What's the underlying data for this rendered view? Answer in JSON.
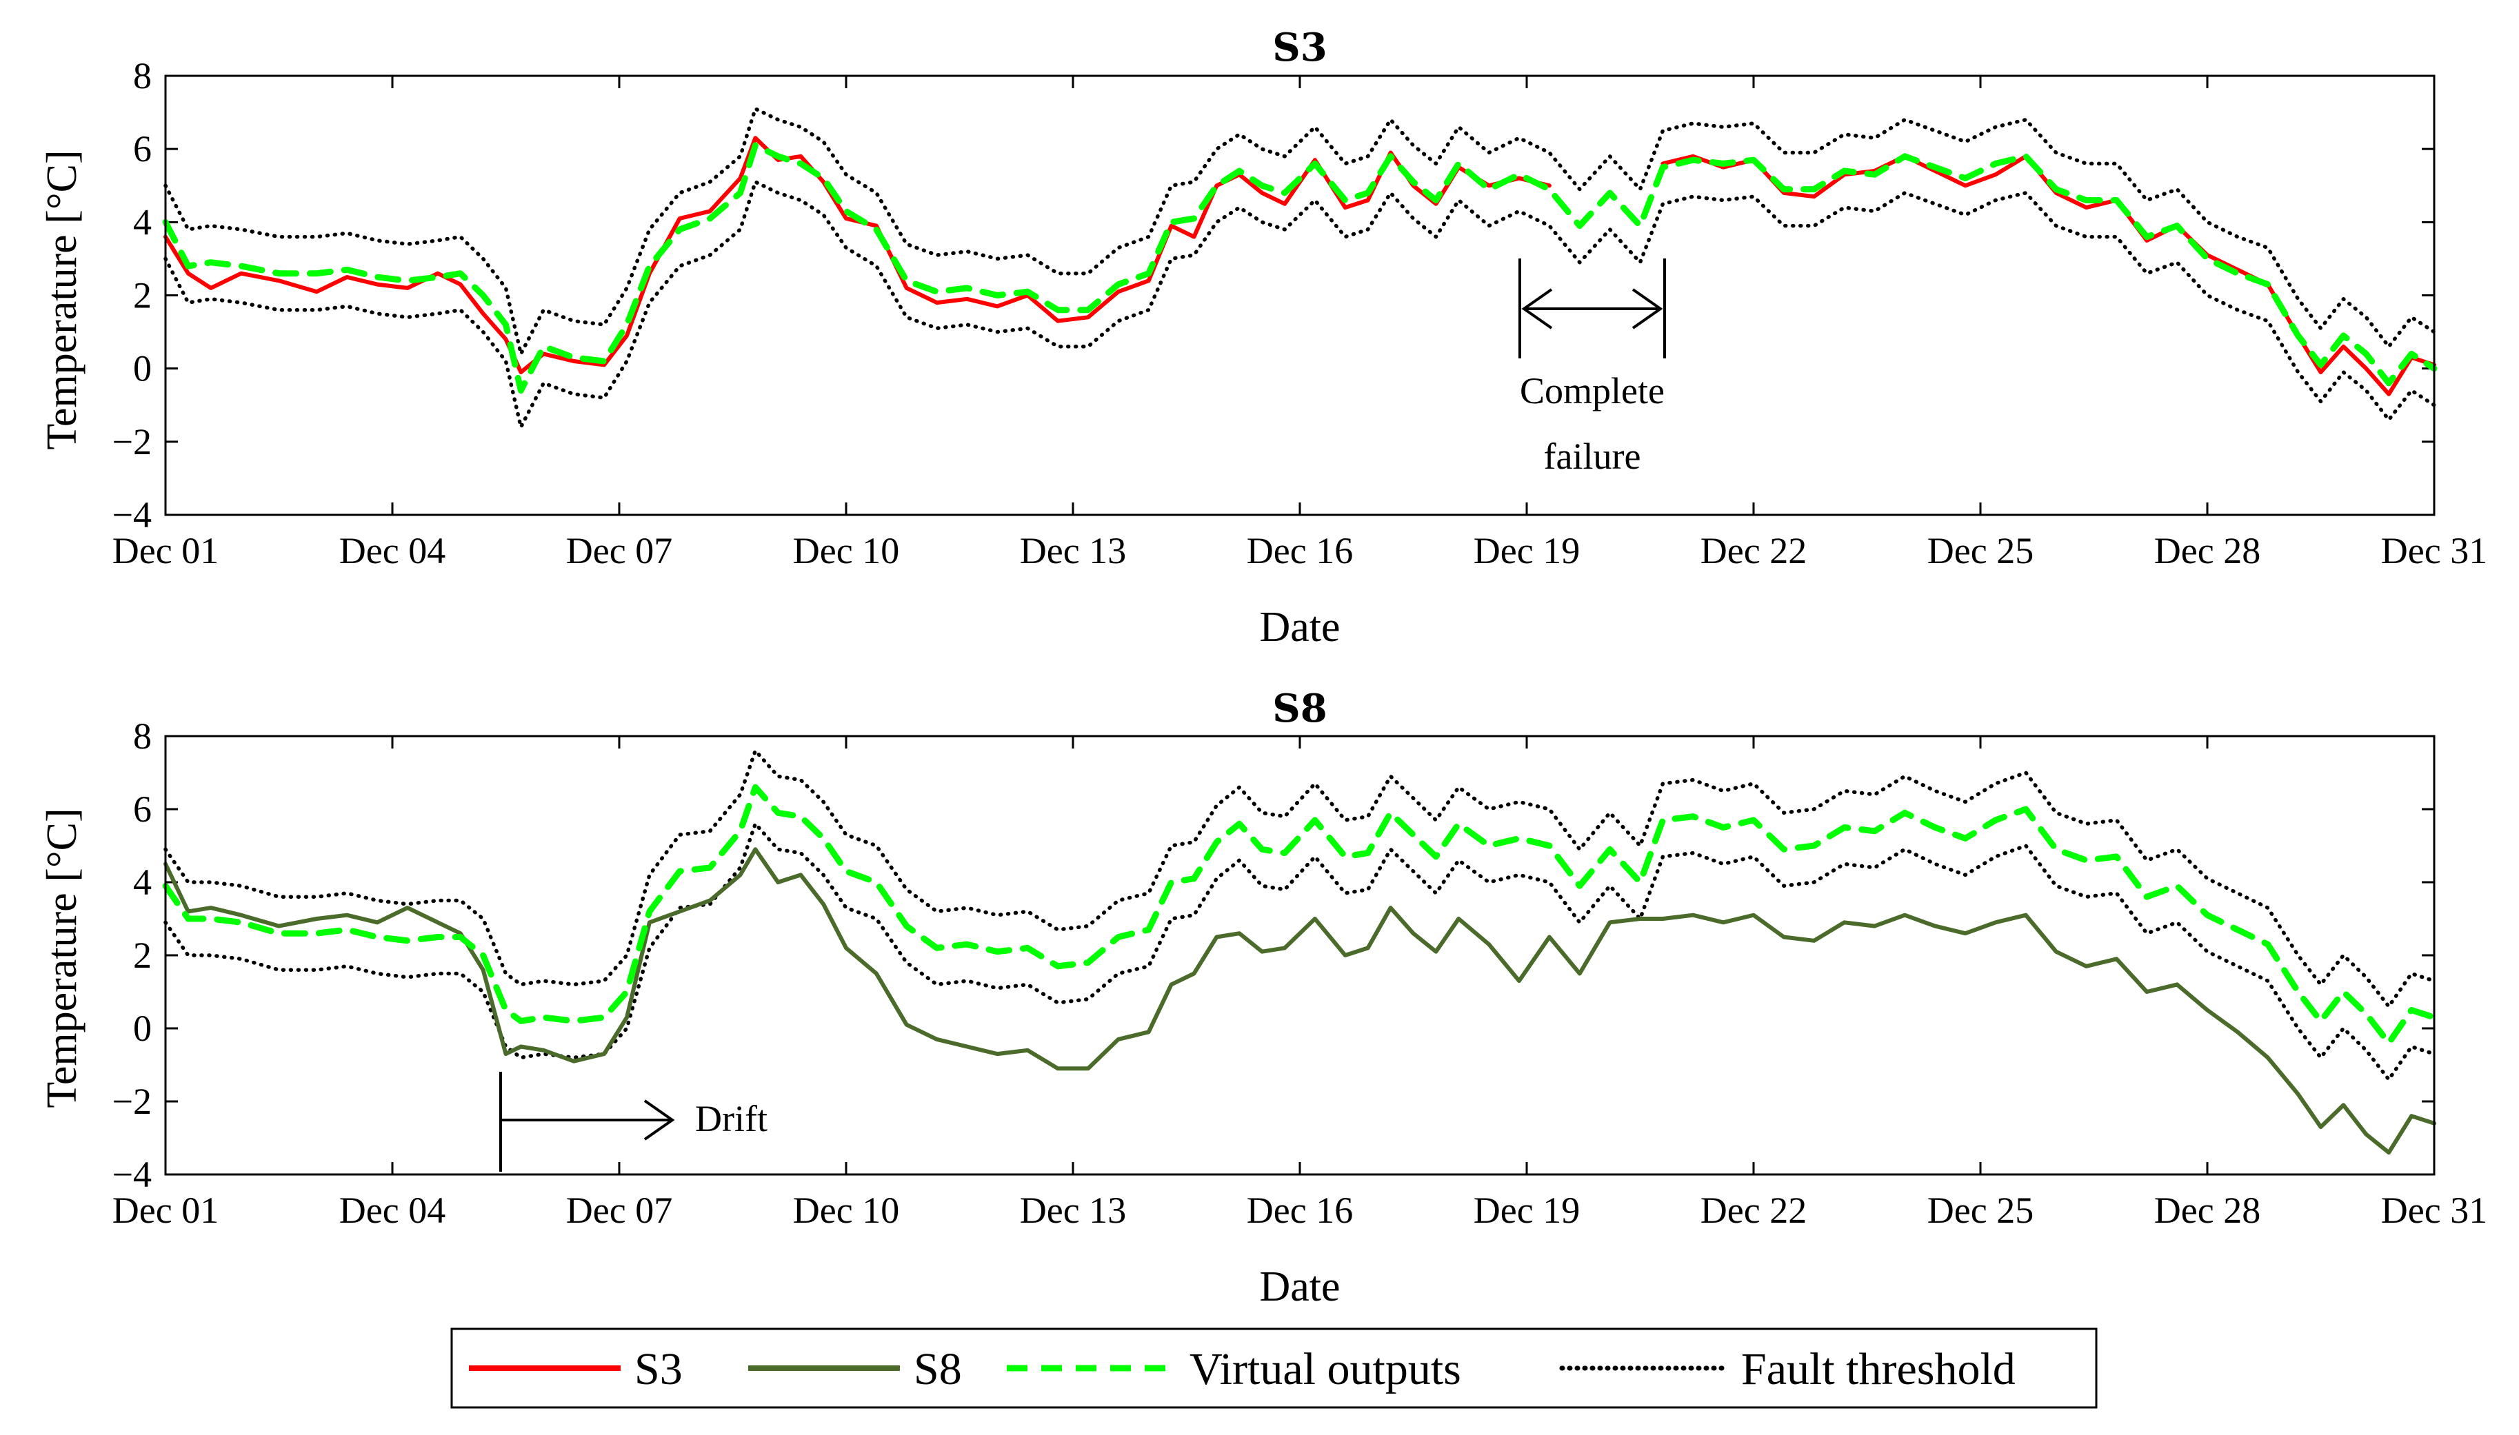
{
  "chart_data": [
    {
      "type": "line",
      "title": "S3",
      "xlabel": "Date",
      "ylabel": "Temperature [°C]",
      "xlim": [
        1,
        31
      ],
      "ylim": [
        -4,
        8
      ],
      "yticks": [
        -4,
        -2,
        0,
        2,
        4,
        6,
        8
      ],
      "yticklabels": [
        "−4",
        "−2",
        "0",
        "2",
        "4",
        "6",
        "8"
      ],
      "xticks": [
        1,
        4,
        7,
        10,
        13,
        16,
        19,
        22,
        25,
        28,
        31
      ],
      "xticklabels": [
        "Dec 01",
        "Dec 04",
        "Dec 07",
        "Dec 10",
        "Dec 13",
        "Dec 16",
        "Dec 19",
        "Dec 22",
        "Dec 25",
        "Dec 28",
        "Dec 31"
      ],
      "series": [
        {
          "name": "S3",
          "color": "#ff0000",
          "style": "solid",
          "x": [
            1,
            1.3,
            1.6,
            2.0,
            2.5,
            3.0,
            3.4,
            3.8,
            4.2,
            4.6,
            4.9,
            5.2,
            5.5,
            5.7,
            6.0,
            6.4,
            6.8,
            7.1,
            7.4,
            7.8,
            8.2,
            8.6,
            8.8,
            9.1,
            9.4,
            9.7,
            10.0,
            10.4,
            10.8,
            11.2,
            11.6,
            12.0,
            12.4,
            12.8,
            13.2,
            13.6,
            14.0,
            14.3,
            14.6,
            14.9,
            15.2,
            15.5,
            15.8,
            16.2,
            16.6,
            16.9,
            17.2,
            17.5,
            17.8,
            18.1,
            18.5,
            18.9,
            19.3
          ],
          "y": [
            3.6,
            2.6,
            2.2,
            2.6,
            2.4,
            2.1,
            2.5,
            2.3,
            2.2,
            2.6,
            2.3,
            1.5,
            0.8,
            -0.1,
            0.4,
            0.2,
            0.1,
            0.9,
            2.6,
            4.1,
            4.3,
            5.2,
            6.3,
            5.7,
            5.8,
            5.1,
            4.1,
            3.9,
            2.2,
            1.8,
            1.9,
            1.7,
            2.0,
            1.3,
            1.4,
            2.1,
            2.4,
            3.9,
            3.6,
            5.0,
            5.3,
            4.8,
            4.5,
            5.7,
            4.4,
            4.6,
            5.9,
            5.0,
            4.5,
            5.5,
            5.0,
            5.2,
            5.0
          ]
        },
        {
          "name": "S3",
          "color": "#ff0000",
          "style": "solid",
          "x": [
            20.8,
            21.2,
            21.6,
            22.0,
            22.4,
            22.8,
            23.2,
            23.6,
            24.0,
            24.4,
            24.8,
            25.2,
            25.6,
            26.0,
            26.4,
            26.8,
            27.2,
            27.6,
            28.0,
            28.4,
            28.8,
            29.2,
            29.5,
            29.8,
            30.1,
            30.4,
            30.7,
            31.0
          ],
          "y": [
            5.6,
            5.8,
            5.5,
            5.7,
            4.8,
            4.7,
            5.3,
            5.4,
            5.8,
            5.4,
            5.0,
            5.3,
            5.8,
            4.8,
            4.4,
            4.6,
            3.5,
            3.9,
            3.1,
            2.7,
            2.3,
            0.9,
            -0.1,
            0.6,
            0.0,
            -0.7,
            0.3,
            0.1
          ]
        },
        {
          "name": "Virtual outputs",
          "color": "#00ff00",
          "style": "dashed",
          "x": [
            1,
            1.3,
            1.6,
            2.0,
            2.5,
            3.0,
            3.4,
            3.8,
            4.2,
            4.6,
            4.9,
            5.2,
            5.5,
            5.7,
            6.0,
            6.4,
            6.8,
            7.1,
            7.4,
            7.8,
            8.2,
            8.6,
            8.8,
            9.1,
            9.4,
            9.7,
            10.0,
            10.4,
            10.8,
            11.2,
            11.6,
            12.0,
            12.4,
            12.8,
            13.2,
            13.6,
            14.0,
            14.3,
            14.6,
            14.9,
            15.2,
            15.5,
            15.8,
            16.2,
            16.6,
            16.9,
            17.2,
            17.5,
            17.8,
            18.1,
            18.5,
            18.9,
            19.3,
            19.7,
            20.1,
            20.5,
            20.8,
            21.2,
            21.6,
            22.0,
            22.4,
            22.8,
            23.2,
            23.6,
            24.0,
            24.4,
            24.8,
            25.2,
            25.6,
            26.0,
            26.4,
            26.8,
            27.2,
            27.6,
            28.0,
            28.4,
            28.8,
            29.2,
            29.5,
            29.8,
            30.1,
            30.4,
            30.7,
            31.0
          ],
          "y": [
            4.0,
            2.8,
            2.9,
            2.8,
            2.6,
            2.6,
            2.7,
            2.5,
            2.4,
            2.5,
            2.6,
            2.0,
            1.2,
            -0.6,
            0.6,
            0.3,
            0.2,
            1.2,
            2.8,
            3.8,
            4.1,
            4.8,
            6.1,
            5.8,
            5.6,
            5.2,
            4.3,
            3.8,
            2.4,
            2.1,
            2.2,
            2.0,
            2.1,
            1.6,
            1.6,
            2.3,
            2.6,
            4.0,
            4.1,
            5.0,
            5.4,
            5.0,
            4.8,
            5.6,
            4.6,
            4.8,
            5.8,
            5.1,
            4.6,
            5.6,
            4.9,
            5.3,
            4.9,
            3.9,
            4.8,
            3.9,
            5.5,
            5.7,
            5.6,
            5.7,
            4.9,
            4.9,
            5.4,
            5.3,
            5.8,
            5.5,
            5.2,
            5.6,
            5.8,
            4.9,
            4.6,
            4.6,
            3.6,
            3.9,
            3.0,
            2.6,
            2.3,
            0.9,
            0.1,
            0.9,
            0.4,
            -0.4,
            0.4,
            0.0
          ]
        },
        {
          "name": "Fault threshold",
          "color": "#000000",
          "style": "dotted",
          "bound": "upper",
          "offset": 1.0
        },
        {
          "name": "Fault threshold",
          "color": "#000000",
          "style": "dotted",
          "bound": "lower",
          "offset": -1.0
        }
      ],
      "annotations": [
        {
          "text_lines": [
            "Complete",
            "failure"
          ],
          "x_start": 19.0,
          "x_end": 20.9
        }
      ]
    },
    {
      "type": "line",
      "title": "S8",
      "xlabel": "Date",
      "ylabel": "Temperature [°C]",
      "xlim": [
        1,
        31
      ],
      "ylim": [
        -4,
        8
      ],
      "yticks": [
        -4,
        -2,
        0,
        2,
        4,
        6,
        8
      ],
      "yticklabels": [
        "−4",
        "−2",
        "0",
        "2",
        "4",
        "6",
        "8"
      ],
      "xticks": [
        1,
        4,
        7,
        10,
        13,
        16,
        19,
        22,
        25,
        28,
        31
      ],
      "xticklabels": [
        "Dec 01",
        "Dec 04",
        "Dec 07",
        "Dec 10",
        "Dec 13",
        "Dec 16",
        "Dec 19",
        "Dec 22",
        "Dec 25",
        "Dec 28",
        "Dec 31"
      ],
      "series": [
        {
          "name": "S8",
          "color": "#4a6b2a",
          "style": "solid",
          "x": [
            1,
            1.3,
            1.6,
            2.0,
            2.5,
            3.0,
            3.4,
            3.8,
            4.2,
            4.6,
            4.9,
            5.2,
            5.5,
            5.7,
            6.0,
            6.4,
            6.8,
            7.1,
            7.4,
            7.8,
            8.2,
            8.6,
            8.8,
            9.1,
            9.4,
            9.7,
            10.0,
            10.4,
            10.8,
            11.2,
            11.6,
            12.0,
            12.4,
            12.8,
            13.2,
            13.6,
            14.0,
            14.3,
            14.6,
            14.9,
            15.2,
            15.5,
            15.8,
            16.2,
            16.6,
            16.9,
            17.2,
            17.5,
            17.8,
            18.1,
            18.5,
            18.9,
            19.3,
            19.7,
            20.1,
            20.5,
            20.8,
            21.2,
            21.6,
            22.0,
            22.4,
            22.8,
            23.2,
            23.6,
            24.0,
            24.4,
            24.8,
            25.2,
            25.6,
            26.0,
            26.4,
            26.8,
            27.2,
            27.6,
            28.0,
            28.4,
            28.8,
            29.2,
            29.5,
            29.8,
            30.1,
            30.4,
            30.7,
            31.0
          ],
          "y": [
            4.5,
            3.2,
            3.3,
            3.1,
            2.8,
            3.0,
            3.1,
            2.9,
            3.3,
            2.9,
            2.6,
            1.6,
            -0.7,
            -0.5,
            -0.6,
            -0.9,
            -0.7,
            0.3,
            2.9,
            3.2,
            3.5,
            4.2,
            4.9,
            4.0,
            4.2,
            3.4,
            2.2,
            1.5,
            0.1,
            -0.3,
            -0.5,
            -0.7,
            -0.6,
            -1.1,
            -1.1,
            -0.3,
            -0.1,
            1.2,
            1.5,
            2.5,
            2.6,
            2.1,
            2.2,
            3.0,
            2.0,
            2.2,
            3.3,
            2.6,
            2.1,
            3.0,
            2.3,
            1.3,
            2.5,
            1.5,
            2.9,
            3.0,
            3.0,
            3.1,
            2.9,
            3.1,
            2.5,
            2.4,
            2.9,
            2.8,
            3.1,
            2.8,
            2.6,
            2.9,
            3.1,
            2.1,
            1.7,
            1.9,
            1.0,
            1.2,
            0.5,
            -0.1,
            -0.8,
            -1.8,
            -2.7,
            -2.1,
            -2.9,
            -3.4,
            -2.4,
            -2.6
          ]
        },
        {
          "name": "Virtual outputs",
          "color": "#00ff00",
          "style": "dashed",
          "x": [
            1,
            1.3,
            1.6,
            2.0,
            2.5,
            3.0,
            3.4,
            3.8,
            4.2,
            4.6,
            4.9,
            5.2,
            5.5,
            5.7,
            6.0,
            6.4,
            6.8,
            7.1,
            7.4,
            7.8,
            8.2,
            8.6,
            8.8,
            9.1,
            9.4,
            9.7,
            10.0,
            10.4,
            10.8,
            11.2,
            11.6,
            12.0,
            12.4,
            12.8,
            13.2,
            13.6,
            14.0,
            14.3,
            14.6,
            14.9,
            15.2,
            15.5,
            15.8,
            16.2,
            16.6,
            16.9,
            17.2,
            17.5,
            17.8,
            18.1,
            18.5,
            18.9,
            19.3,
            19.7,
            20.1,
            20.5,
            20.8,
            21.2,
            21.6,
            22.0,
            22.4,
            22.8,
            23.2,
            23.6,
            24.0,
            24.4,
            24.8,
            25.2,
            25.6,
            26.0,
            26.4,
            26.8,
            27.2,
            27.6,
            28.0,
            28.4,
            28.8,
            29.2,
            29.5,
            29.8,
            30.1,
            30.4,
            30.7,
            31.0
          ],
          "y": [
            3.9,
            3.0,
            3.0,
            2.9,
            2.6,
            2.6,
            2.7,
            2.5,
            2.4,
            2.5,
            2.5,
            2.0,
            0.5,
            0.2,
            0.3,
            0.2,
            0.3,
            1.0,
            3.2,
            4.3,
            4.4,
            5.4,
            6.6,
            5.9,
            5.8,
            5.2,
            4.3,
            4.0,
            2.8,
            2.2,
            2.3,
            2.1,
            2.2,
            1.7,
            1.8,
            2.5,
            2.7,
            4.0,
            4.1,
            5.1,
            5.6,
            4.9,
            4.8,
            5.7,
            4.7,
            4.8,
            5.9,
            5.3,
            4.7,
            5.6,
            5.0,
            5.2,
            5.0,
            3.9,
            4.9,
            4.0,
            5.7,
            5.8,
            5.5,
            5.7,
            4.9,
            5.0,
            5.5,
            5.4,
            5.9,
            5.5,
            5.2,
            5.7,
            6.0,
            4.9,
            4.6,
            4.7,
            3.6,
            3.9,
            3.1,
            2.7,
            2.3,
            1.0,
            0.2,
            1.0,
            0.4,
            -0.4,
            0.5,
            0.3
          ]
        },
        {
          "name": "Fault threshold",
          "color": "#000000",
          "style": "dotted",
          "bound": "upper",
          "offset": 1.0
        },
        {
          "name": "Fault threshold",
          "color": "#000000",
          "style": "dotted",
          "bound": "lower",
          "offset": -1.0
        }
      ],
      "annotations": [
        {
          "text": "Drift",
          "x_start": 5.55
        }
      ]
    }
  ],
  "legend": {
    "position": "bottom-center",
    "entries": [
      {
        "label": "S3",
        "color": "#ff0000",
        "style": "solid"
      },
      {
        "label": "S8",
        "color": "#4a6b2a",
        "style": "solid"
      },
      {
        "label": "Virtual outputs",
        "color": "#00ff00",
        "style": "dashed"
      },
      {
        "label": "Fault threshold",
        "color": "#000000",
        "style": "dotted"
      }
    ]
  }
}
